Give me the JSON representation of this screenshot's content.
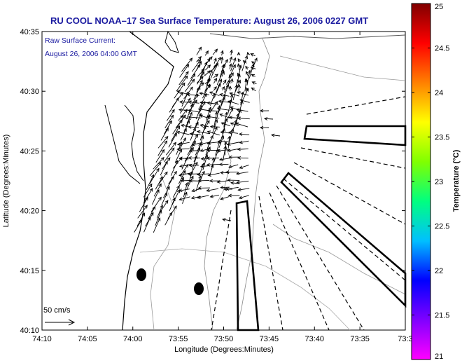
{
  "chart_data": {
    "type": "map",
    "title": "RU COOL  NOAA–17  Sea Surface Temperature:  August 26, 2006 0227 GMT",
    "annotation_lines": [
      "Raw Surface Current:",
      "August 26, 2006 04:00 GMT"
    ],
    "xlabel": "Longitude (Degrees:Minutes)",
    "ylabel": "Latitude (Degrees:Minutes)",
    "x_ticks": [
      "74:10",
      "74:05",
      "74:00",
      "73:55",
      "73:50",
      "73:45",
      "73:40",
      "73:35",
      "73:3"
    ],
    "y_ticks": [
      "40:10",
      "40:15",
      "40:20",
      "40:25",
      "40:30",
      "40:35"
    ],
    "xlim_minutes_west": [
      10,
      -3
    ],
    "ylim_minutes_north": [
      10,
      35
    ],
    "scale_label": "50 cm/s",
    "colorbar": {
      "label": "Temperature (°C)",
      "ticks": [
        "21",
        "21.5",
        "22",
        "22.5",
        "23",
        "23.5",
        "24",
        "24.5",
        "25"
      ],
      "range": [
        21,
        25
      ],
      "colors": [
        "#ff00ff",
        "#8000ff",
        "#0000ff",
        "#00c0ff",
        "#00ff80",
        "#80ff00",
        "#ffff00",
        "#ff8000",
        "#ff0000",
        "#800000"
      ]
    },
    "current_vectors": [
      {
        "lon": 73.98,
        "lat": 40.2,
        "u": 45,
        "v": 50
      },
      {
        "lon": 73.96,
        "lat": 40.22,
        "u": 40,
        "v": 45
      },
      {
        "lon": 73.95,
        "lat": 40.25,
        "u": 10,
        "v": 45
      },
      {
        "lon": 73.94,
        "lat": 40.28,
        "u": -5,
        "v": 40
      },
      {
        "lon": 73.92,
        "lat": 40.3,
        "u": 20,
        "v": 30
      },
      {
        "lon": 73.88,
        "lat": 40.32,
        "u": 25,
        "v": 25
      },
      {
        "lon": 73.87,
        "lat": 40.27,
        "u": -30,
        "v": 10
      },
      {
        "lon": 73.85,
        "lat": 40.24,
        "u": -40,
        "v": 20
      },
      {
        "lon": 73.83,
        "lat": 40.28,
        "u": -25,
        "v": -5
      },
      {
        "lon": 73.79,
        "lat": 40.27,
        "u": -20,
        "v": 0
      }
    ]
  }
}
